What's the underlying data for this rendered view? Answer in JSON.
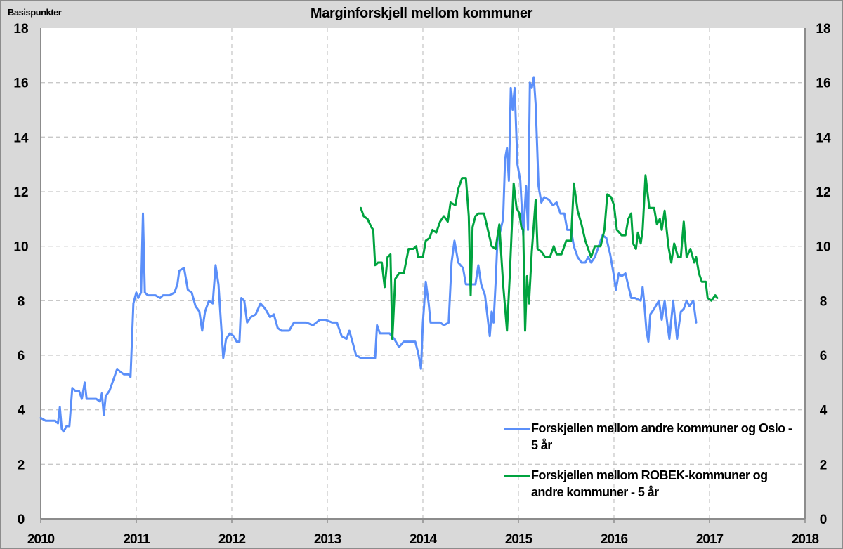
{
  "chart_data": {
    "type": "line",
    "title": "Marginforskjell  mellom kommuner",
    "ylabel": "Basispunkter",
    "xlabel": "",
    "xlim": [
      2010,
      2018
    ],
    "ylim": [
      0,
      18
    ],
    "x_ticks": [
      "2010",
      "2011",
      "2012",
      "2013",
      "2014",
      "2015",
      "2016",
      "2017",
      "2018"
    ],
    "y_ticks": [
      "0",
      "2",
      "4",
      "6",
      "8",
      "10",
      "12",
      "14",
      "16",
      "18"
    ],
    "grid": true,
    "dual_y_axis": true,
    "legend_position": "lower right",
    "series": [
      {
        "name": "Forskjellen mellom andre kommuner og Oslo - 5 år",
        "color": "#5b8ff9",
        "points": [
          [
            2010.0,
            3.7
          ],
          [
            2010.05,
            3.6
          ],
          [
            2010.1,
            3.6
          ],
          [
            2010.15,
            3.6
          ],
          [
            2010.18,
            3.5
          ],
          [
            2010.2,
            4.1
          ],
          [
            2010.22,
            3.3
          ],
          [
            2010.24,
            3.2
          ],
          [
            2010.27,
            3.4
          ],
          [
            2010.3,
            3.4
          ],
          [
            2010.33,
            4.8
          ],
          [
            2010.36,
            4.7
          ],
          [
            2010.4,
            4.7
          ],
          [
            2010.43,
            4.4
          ],
          [
            2010.46,
            5.0
          ],
          [
            2010.48,
            4.4
          ],
          [
            2010.52,
            4.4
          ],
          [
            2010.58,
            4.4
          ],
          [
            2010.62,
            4.3
          ],
          [
            2010.64,
            4.6
          ],
          [
            2010.66,
            3.8
          ],
          [
            2010.68,
            4.5
          ],
          [
            2010.72,
            4.7
          ],
          [
            2010.76,
            5.1
          ],
          [
            2010.8,
            5.5
          ],
          [
            2010.83,
            5.4
          ],
          [
            2010.87,
            5.3
          ],
          [
            2010.92,
            5.3
          ],
          [
            2010.94,
            5.2
          ],
          [
            2010.97,
            7.9
          ],
          [
            2011.0,
            8.3
          ],
          [
            2011.02,
            8.1
          ],
          [
            2011.05,
            8.3
          ],
          [
            2011.07,
            11.2
          ],
          [
            2011.09,
            8.3
          ],
          [
            2011.12,
            8.2
          ],
          [
            2011.2,
            8.2
          ],
          [
            2011.25,
            8.1
          ],
          [
            2011.28,
            8.2
          ],
          [
            2011.35,
            8.2
          ],
          [
            2011.4,
            8.3
          ],
          [
            2011.43,
            8.6
          ],
          [
            2011.45,
            9.1
          ],
          [
            2011.5,
            9.2
          ],
          [
            2011.54,
            8.4
          ],
          [
            2011.58,
            8.3
          ],
          [
            2011.62,
            7.8
          ],
          [
            2011.66,
            7.6
          ],
          [
            2011.69,
            6.9
          ],
          [
            2011.72,
            7.6
          ],
          [
            2011.76,
            8.0
          ],
          [
            2011.8,
            7.9
          ],
          [
            2011.83,
            9.3
          ],
          [
            2011.86,
            8.6
          ],
          [
            2011.91,
            5.9
          ],
          [
            2011.94,
            6.6
          ],
          [
            2011.98,
            6.8
          ],
          [
            2012.02,
            6.7
          ],
          [
            2012.05,
            6.5
          ],
          [
            2012.08,
            6.5
          ],
          [
            2012.1,
            8.1
          ],
          [
            2012.13,
            8.0
          ],
          [
            2012.16,
            7.2
          ],
          [
            2012.2,
            7.4
          ],
          [
            2012.25,
            7.5
          ],
          [
            2012.3,
            7.9
          ],
          [
            2012.35,
            7.7
          ],
          [
            2012.4,
            7.4
          ],
          [
            2012.44,
            7.5
          ],
          [
            2012.48,
            7.0
          ],
          [
            2012.52,
            6.9
          ],
          [
            2012.6,
            6.9
          ],
          [
            2012.65,
            7.2
          ],
          [
            2012.72,
            7.2
          ],
          [
            2012.78,
            7.2
          ],
          [
            2012.85,
            7.1
          ],
          [
            2012.92,
            7.3
          ],
          [
            2012.98,
            7.3
          ],
          [
            2013.05,
            7.2
          ],
          [
            2013.1,
            7.2
          ],
          [
            2013.15,
            6.7
          ],
          [
            2013.2,
            6.6
          ],
          [
            2013.23,
            6.9
          ],
          [
            2013.27,
            6.4
          ],
          [
            2013.3,
            6.0
          ],
          [
            2013.35,
            5.9
          ],
          [
            2013.45,
            5.9
          ],
          [
            2013.5,
            5.9
          ],
          [
            2013.52,
            7.1
          ],
          [
            2013.55,
            6.8
          ],
          [
            2013.65,
            6.8
          ],
          [
            2013.7,
            6.6
          ],
          [
            2013.75,
            6.3
          ],
          [
            2013.8,
            6.5
          ],
          [
            2013.83,
            6.5
          ],
          [
            2013.88,
            6.5
          ],
          [
            2013.92,
            6.5
          ],
          [
            2013.95,
            6.1
          ],
          [
            2013.98,
            5.5
          ],
          [
            2014.0,
            7.2
          ],
          [
            2014.03,
            8.7
          ],
          [
            2014.06,
            7.9
          ],
          [
            2014.08,
            7.2
          ],
          [
            2014.18,
            7.2
          ],
          [
            2014.22,
            7.1
          ],
          [
            2014.27,
            7.2
          ],
          [
            2014.3,
            9.4
          ],
          [
            2014.33,
            10.2
          ],
          [
            2014.37,
            9.4
          ],
          [
            2014.42,
            9.2
          ],
          [
            2014.45,
            8.6
          ],
          [
            2014.5,
            8.6
          ],
          [
            2014.55,
            8.6
          ],
          [
            2014.58,
            9.3
          ],
          [
            2014.61,
            8.6
          ],
          [
            2014.65,
            8.2
          ],
          [
            2014.68,
            7.3
          ],
          [
            2014.7,
            6.7
          ],
          [
            2014.72,
            7.6
          ],
          [
            2014.74,
            7.2
          ],
          [
            2014.76,
            8.6
          ],
          [
            2014.78,
            10.2
          ],
          [
            2014.8,
            10.4
          ],
          [
            2014.84,
            11.0
          ],
          [
            2014.86,
            13.2
          ],
          [
            2014.88,
            13.6
          ],
          [
            2014.9,
            12.4
          ],
          [
            2014.92,
            15.8
          ],
          [
            2014.94,
            15.0
          ],
          [
            2014.96,
            15.8
          ],
          [
            2014.99,
            13.0
          ],
          [
            2015.02,
            12.4
          ],
          [
            2015.05,
            10.4
          ],
          [
            2015.08,
            12.2
          ],
          [
            2015.1,
            10.6
          ],
          [
            2015.12,
            16.0
          ],
          [
            2015.14,
            15.8
          ],
          [
            2015.16,
            16.2
          ],
          [
            2015.18,
            15.2
          ],
          [
            2015.21,
            12.2
          ],
          [
            2015.24,
            11.6
          ],
          [
            2015.27,
            11.8
          ],
          [
            2015.32,
            11.7
          ],
          [
            2015.36,
            11.5
          ],
          [
            2015.4,
            11.6
          ],
          [
            2015.44,
            11.2
          ],
          [
            2015.48,
            11.2
          ],
          [
            2015.51,
            10.6
          ],
          [
            2015.55,
            10.6
          ],
          [
            2015.58,
            10.0
          ],
          [
            2015.62,
            9.6
          ],
          [
            2015.66,
            9.4
          ],
          [
            2015.7,
            9.4
          ],
          [
            2015.73,
            9.6
          ],
          [
            2015.76,
            9.4
          ],
          [
            2015.8,
            9.6
          ],
          [
            2015.83,
            9.9
          ],
          [
            2015.88,
            10.4
          ],
          [
            2015.92,
            10.3
          ],
          [
            2015.96,
            9.7
          ],
          [
            2016.0,
            8.9
          ],
          [
            2016.02,
            8.4
          ],
          [
            2016.05,
            9.0
          ],
          [
            2016.08,
            8.9
          ],
          [
            2016.12,
            9.0
          ],
          [
            2016.18,
            8.1
          ],
          [
            2016.22,
            8.1
          ],
          [
            2016.28,
            8.0
          ],
          [
            2016.3,
            8.5
          ],
          [
            2016.32,
            7.8
          ],
          [
            2016.34,
            6.9
          ],
          [
            2016.36,
            6.5
          ],
          [
            2016.38,
            7.5
          ],
          [
            2016.42,
            7.7
          ],
          [
            2016.47,
            8.0
          ],
          [
            2016.5,
            7.3
          ],
          [
            2016.53,
            8.0
          ],
          [
            2016.56,
            7.1
          ],
          [
            2016.58,
            6.6
          ],
          [
            2016.62,
            8.0
          ],
          [
            2016.66,
            6.6
          ],
          [
            2016.7,
            7.6
          ],
          [
            2016.73,
            7.7
          ],
          [
            2016.76,
            8.0
          ],
          [
            2016.79,
            7.8
          ],
          [
            2016.83,
            8.0
          ],
          [
            2016.86,
            7.2
          ]
        ]
      },
      {
        "name": "Forskjellen mellom ROBEK-kommuner og andre kommuner - 5 år",
        "color": "#00a33f",
        "points": [
          [
            2013.35,
            11.4
          ],
          [
            2013.38,
            11.1
          ],
          [
            2013.42,
            11.0
          ],
          [
            2013.46,
            10.7
          ],
          [
            2013.48,
            10.6
          ],
          [
            2013.5,
            9.3
          ],
          [
            2013.53,
            9.4
          ],
          [
            2013.57,
            9.4
          ],
          [
            2013.6,
            8.5
          ],
          [
            2013.63,
            9.6
          ],
          [
            2013.66,
            9.7
          ],
          [
            2013.68,
            6.6
          ],
          [
            2013.71,
            8.8
          ],
          [
            2013.75,
            9.0
          ],
          [
            2013.8,
            9.0
          ],
          [
            2013.85,
            9.9
          ],
          [
            2013.9,
            9.9
          ],
          [
            2013.93,
            10.0
          ],
          [
            2013.95,
            9.6
          ],
          [
            2014.0,
            9.6
          ],
          [
            2014.03,
            10.2
          ],
          [
            2014.07,
            10.3
          ],
          [
            2014.1,
            10.6
          ],
          [
            2014.14,
            10.5
          ],
          [
            2014.18,
            10.9
          ],
          [
            2014.22,
            11.1
          ],
          [
            2014.26,
            10.9
          ],
          [
            2014.29,
            11.6
          ],
          [
            2014.34,
            11.5
          ],
          [
            2014.37,
            12.1
          ],
          [
            2014.41,
            12.5
          ],
          [
            2014.45,
            12.5
          ],
          [
            2014.48,
            11.1
          ],
          [
            2014.5,
            8.2
          ],
          [
            2014.52,
            10.7
          ],
          [
            2014.55,
            11.1
          ],
          [
            2014.58,
            11.2
          ],
          [
            2014.64,
            11.2
          ],
          [
            2014.68,
            10.6
          ],
          [
            2014.72,
            10.0
          ],
          [
            2014.76,
            9.9
          ],
          [
            2014.8,
            10.8
          ],
          [
            2014.84,
            8.6
          ],
          [
            2014.88,
            6.9
          ],
          [
            2014.91,
            9.0
          ],
          [
            2014.95,
            12.3
          ],
          [
            2014.98,
            11.4
          ],
          [
            2015.01,
            11.2
          ],
          [
            2015.03,
            10.7
          ],
          [
            2015.05,
            10.6
          ],
          [
            2015.07,
            6.9
          ],
          [
            2015.09,
            8.9
          ],
          [
            2015.11,
            7.9
          ],
          [
            2015.14,
            9.8
          ],
          [
            2015.18,
            11.7
          ],
          [
            2015.2,
            9.9
          ],
          [
            2015.24,
            9.8
          ],
          [
            2015.28,
            9.6
          ],
          [
            2015.33,
            9.6
          ],
          [
            2015.37,
            10.0
          ],
          [
            2015.4,
            9.7
          ],
          [
            2015.45,
            9.7
          ],
          [
            2015.5,
            10.2
          ],
          [
            2015.55,
            10.2
          ],
          [
            2015.58,
            12.3
          ],
          [
            2015.62,
            11.3
          ],
          [
            2015.66,
            10.8
          ],
          [
            2015.7,
            10.2
          ],
          [
            2015.76,
            9.6
          ],
          [
            2015.8,
            10.0
          ],
          [
            2015.86,
            10.0
          ],
          [
            2015.9,
            10.6
          ],
          [
            2015.93,
            11.9
          ],
          [
            2015.97,
            11.8
          ],
          [
            2016.0,
            11.5
          ],
          [
            2016.03,
            10.6
          ],
          [
            2016.08,
            10.4
          ],
          [
            2016.12,
            10.4
          ],
          [
            2016.15,
            11.0
          ],
          [
            2016.18,
            11.2
          ],
          [
            2016.2,
            10.1
          ],
          [
            2016.23,
            9.9
          ],
          [
            2016.25,
            10.5
          ],
          [
            2016.28,
            10.1
          ],
          [
            2016.3,
            10.6
          ],
          [
            2016.33,
            12.6
          ],
          [
            2016.37,
            11.4
          ],
          [
            2016.42,
            11.4
          ],
          [
            2016.45,
            10.8
          ],
          [
            2016.48,
            11.0
          ],
          [
            2016.5,
            10.6
          ],
          [
            2016.53,
            11.3
          ],
          [
            2016.57,
            10.0
          ],
          [
            2016.6,
            9.4
          ],
          [
            2016.63,
            10.1
          ],
          [
            2016.67,
            9.6
          ],
          [
            2016.7,
            9.6
          ],
          [
            2016.73,
            10.9
          ],
          [
            2016.76,
            9.6
          ],
          [
            2016.8,
            9.9
          ],
          [
            2016.84,
            9.4
          ],
          [
            2016.86,
            9.6
          ],
          [
            2016.89,
            9.0
          ],
          [
            2016.92,
            8.7
          ],
          [
            2016.96,
            8.7
          ],
          [
            2016.98,
            8.1
          ],
          [
            2017.02,
            8.0
          ],
          [
            2017.06,
            8.2
          ],
          [
            2017.08,
            8.1
          ]
        ]
      }
    ]
  }
}
